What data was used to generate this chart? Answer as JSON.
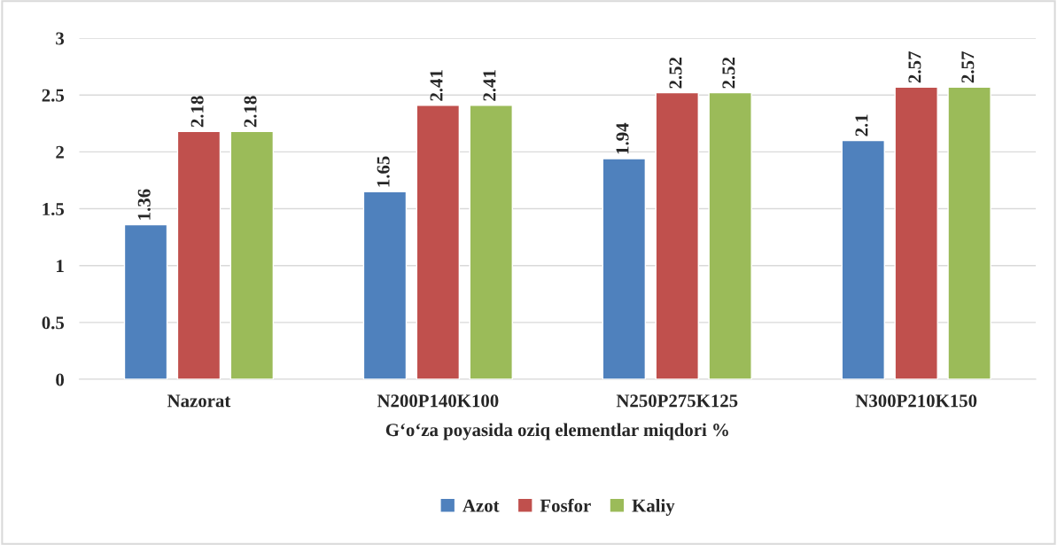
{
  "chart_data": {
    "type": "bar",
    "xlabel": "G‘o‘za poyasida oziq elementlar miqdori %",
    "categories": [
      "Nazorat",
      "N200P140K100",
      "N250P275K125",
      "N300P210K150"
    ],
    "series": [
      {
        "name": "Azot",
        "color": "#4f81bd",
        "values": [
          1.36,
          1.65,
          1.94,
          2.1
        ]
      },
      {
        "name": "Fosfor",
        "color": "#c0504d",
        "values": [
          2.18,
          2.41,
          2.52,
          2.57
        ]
      },
      {
        "name": "Kaliy",
        "color": "#9bbb59",
        "values": [
          2.18,
          2.41,
          2.52,
          2.57
        ]
      }
    ],
    "ylim": [
      0,
      3
    ],
    "yticks": [
      0,
      0.5,
      1,
      1.5,
      2,
      2.5,
      3
    ],
    "grid": "y",
    "legend": "bottom",
    "data_labels": true
  }
}
